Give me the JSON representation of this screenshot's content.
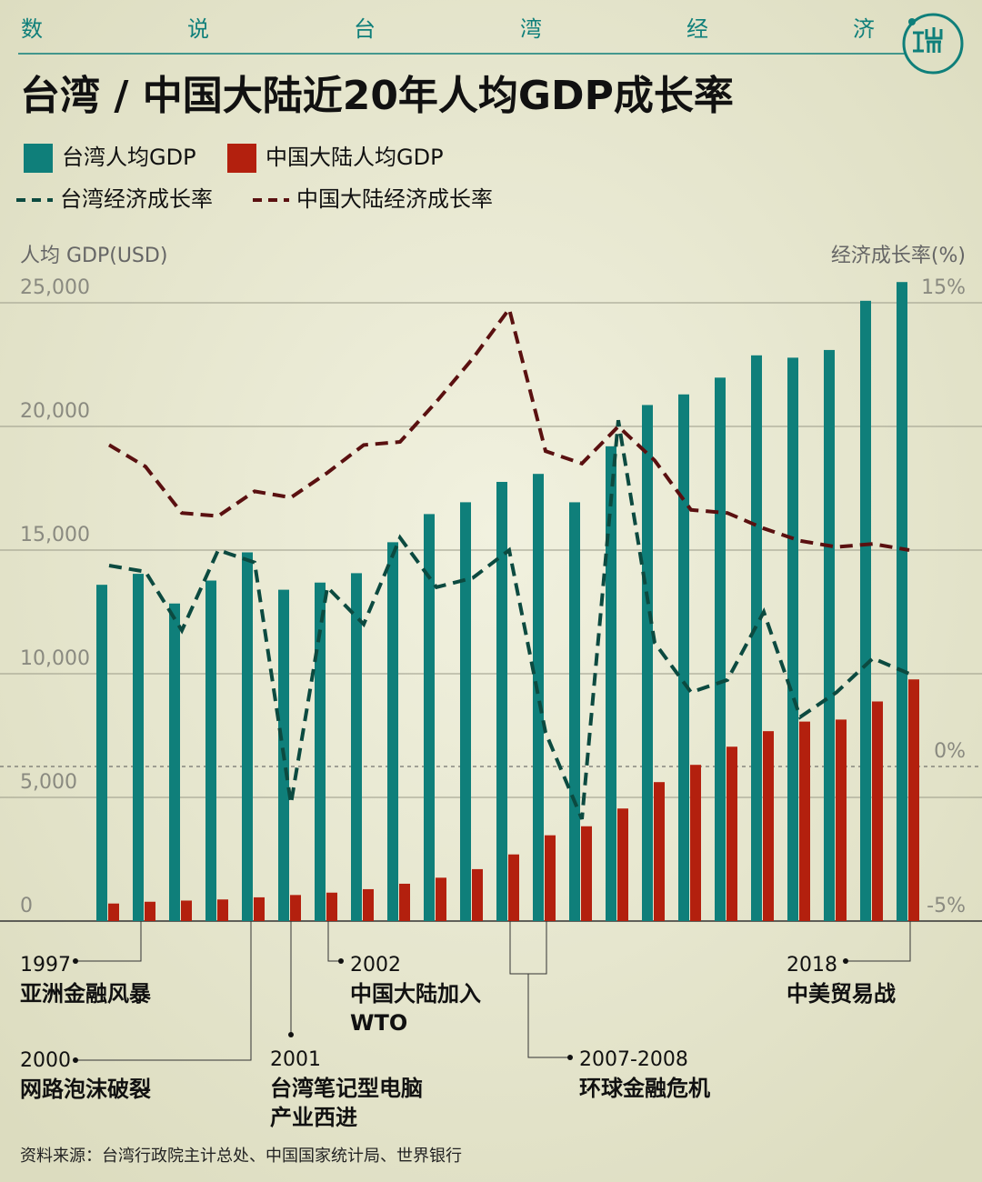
{
  "chart_data": {
    "type": "bar_line",
    "kicker": [
      "数",
      "说",
      "台",
      "湾",
      "经",
      "济"
    ],
    "title": "台湾 / 中国大陆近20年人均GDP成长率",
    "y_axis_label": "人均 GDP(USD)",
    "y2_axis_label": "经济成长率(%)",
    "categories": [
      null,
      null,
      null,
      null,
      null,
      null,
      null,
      null,
      null,
      null,
      null,
      null,
      null,
      null,
      null,
      null,
      null,
      null,
      null,
      null,
      null,
      null,
      null
    ],
    "ylim": [
      0,
      25000
    ],
    "yticks": [
      {
        "value": 0,
        "label": "0"
      },
      {
        "value": 5000,
        "label": "5,000"
      },
      {
        "value": 10000,
        "label": "10,000"
      },
      {
        "value": 15000,
        "label": "15,000"
      },
      {
        "value": 20000,
        "label": "20,000"
      },
      {
        "value": 25000,
        "label": "25,000"
      }
    ],
    "y2lim": [
      -5,
      15
    ],
    "y2ticks": [
      {
        "value": -5,
        "label": "-5%"
      },
      {
        "value": 0,
        "label": "0%"
      },
      {
        "value": 15,
        "label": "15%"
      }
    ],
    "grid": true,
    "series": [
      {
        "name": "台湾人均GDP",
        "type": "bar",
        "color": "#0f7f7a",
        "values": [
          13597,
          14040,
          12840,
          13768,
          14908,
          13397,
          13686,
          14066,
          15317,
          16456,
          16934,
          17757,
          18081,
          16933,
          19197,
          20866,
          21295,
          21973,
          22874,
          22780,
          23091,
          25080,
          25838
        ]
      },
      {
        "name": "中国大陆人均GDP",
        "type": "bar",
        "color": "#b3200e",
        "values": [
          709,
          781,
          828,
          873,
          959,
          1053,
          1149,
          1289,
          1509,
          1753,
          2099,
          2694,
          3468,
          3832,
          4550,
          5618,
          6316,
          7050,
          7678,
          8066,
          8147,
          8879,
          9771
        ]
      },
      {
        "name": "台湾经济成长率",
        "type": "line",
        "axis": "y2",
        "color": "#0c4a40",
        "values": [
          6.5,
          6.3,
          4.4,
          7.0,
          6.6,
          -1.2,
          5.8,
          4.6,
          7.4,
          5.8,
          6.1,
          7.0,
          1.1,
          -1.7,
          11.2,
          4.0,
          2.4,
          2.8,
          5.0,
          1.6,
          2.4,
          3.5,
          3.0
        ]
      },
      {
        "name": "中国大陆经济成长率",
        "type": "line",
        "axis": "y2",
        "color": "#5a1010",
        "values": [
          10.4,
          9.7,
          8.2,
          8.1,
          8.9,
          8.7,
          9.5,
          10.4,
          10.5,
          11.8,
          13.2,
          14.8,
          10.2,
          9.8,
          11.0,
          9.9,
          8.3,
          8.2,
          7.7,
          7.3,
          7.1,
          7.2,
          7.0
        ]
      }
    ],
    "annotations": [
      {
        "year": "1997",
        "lines": [
          "亚洲金融风暴"
        ]
      },
      {
        "year": "2000",
        "lines": [
          "网路泡沫破裂"
        ]
      },
      {
        "year": "2001",
        "lines": [
          "台湾笔记型电脑",
          "产业西进"
        ]
      },
      {
        "year": "2002",
        "lines": [
          "中国大陆加入",
          "WTO"
        ]
      },
      {
        "year": "2007-2008",
        "lines": [
          "环球金融危机"
        ]
      },
      {
        "year": "2018",
        "lines": [
          "中美贸易战"
        ]
      }
    ],
    "source": "资料来源：台湾行政院主计总处、中国国家统计局、世界银行"
  }
}
